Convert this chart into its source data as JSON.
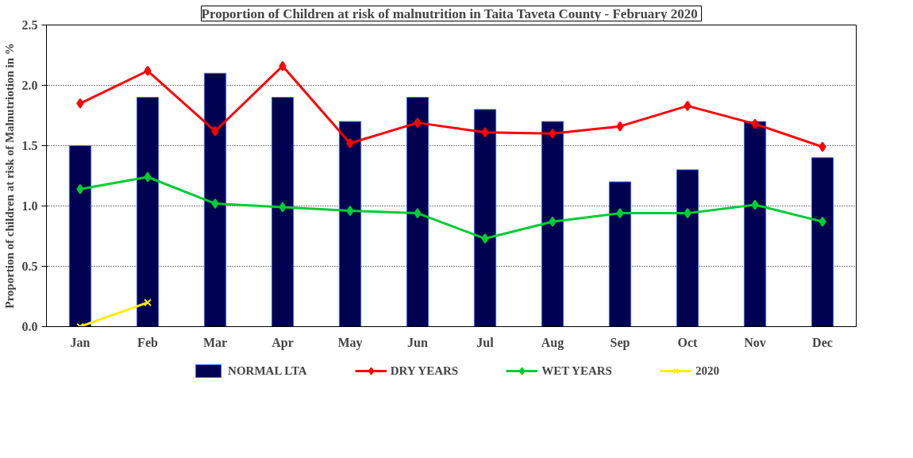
{
  "chart_data": {
    "type": "bar",
    "title": "Proportion of Children at risk of malnutrition in Taita Taveta County  - February 2020",
    "ylabel": "Proportion of children at risk of Malnutriotion in %",
    "categories": [
      "Jan",
      "Feb",
      "Mar",
      "Apr",
      "May",
      "Jun",
      "Jul",
      "Aug",
      "Sep",
      "Oct",
      "Nov",
      "Dec"
    ],
    "series": [
      {
        "name": "NORMAL LTA",
        "color": "#000050",
        "values": [
          1.5,
          1.9,
          2.1,
          1.9,
          1.7,
          1.9,
          1.8,
          1.7,
          1.2,
          1.3,
          1.7,
          1.4
        ]
      },
      {
        "name": "DRY YEARS",
        "type": "line",
        "marker": "diamond",
        "color": "#ff0000",
        "values": [
          1.85,
          2.12,
          1.62,
          2.16,
          1.52,
          1.69,
          1.61,
          1.6,
          1.66,
          1.83,
          1.68,
          1.49
        ]
      },
      {
        "name": "WET YEARS",
        "type": "line",
        "marker": "diamond",
        "color": "#00cc33",
        "values": [
          1.14,
          1.24,
          1.02,
          0.99,
          0.96,
          0.94,
          0.73,
          0.87,
          0.94,
          0.94,
          1.01,
          0.87
        ]
      },
      {
        "name": "2020",
        "type": "line",
        "marker": "cross",
        "color": "#ffee00",
        "values": [
          0.0,
          0.2,
          null,
          null,
          null,
          null,
          null,
          null,
          null,
          null,
          null,
          null
        ]
      }
    ],
    "ylim": [
      0,
      2.5
    ],
    "yticks": [
      {
        "value": 0,
        "label": "0.0"
      },
      {
        "value": 0.5,
        "label": "0.5"
      },
      {
        "value": 1,
        "label": "1.0"
      },
      {
        "value": 1.5,
        "label": "1.5"
      },
      {
        "value": 2,
        "label": "2.0"
      },
      {
        "value": 2.5,
        "label": "2.5"
      }
    ],
    "grid": "y",
    "legend": "bottom",
    "line_style": "solid"
  }
}
